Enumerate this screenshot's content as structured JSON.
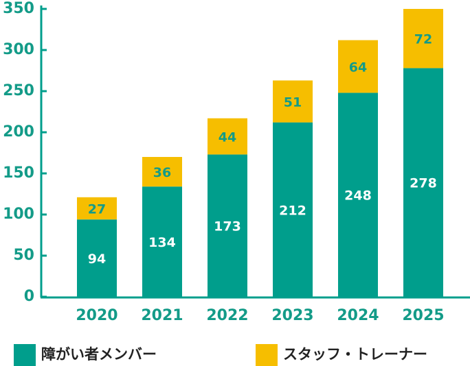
{
  "chart_data": {
    "type": "stacked-bar",
    "categories": [
      "2020",
      "2021",
      "2022",
      "2023",
      "2024",
      "2025"
    ],
    "series": [
      {
        "name": "障がい者メンバー",
        "color": "#009e8c",
        "values": [
          94,
          134,
          173,
          212,
          248,
          278
        ]
      },
      {
        "name": "スタッフ・トレーナー",
        "color": "#f6be00",
        "values": [
          27,
          36,
          44,
          51,
          64,
          72
        ]
      }
    ],
    "ylim": [
      0,
      350
    ],
    "yticks": [
      0,
      50,
      100,
      150,
      200,
      250,
      300,
      350
    ],
    "grid": false
  }
}
